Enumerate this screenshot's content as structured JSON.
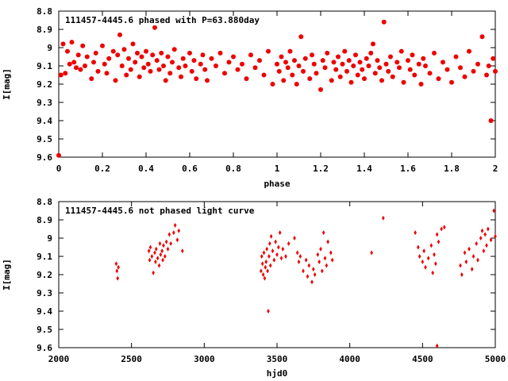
{
  "chart_data": [
    {
      "type": "scatter",
      "title": "111457-4445.6 phased with P=63.880day",
      "xlabel": "phase",
      "ylabel": "I[mag]",
      "xlim": [
        0,
        2
      ],
      "ylim": [
        9.6,
        8.8
      ],
      "y_inverted": true,
      "x_ticks": [
        "0",
        "0.2",
        "0.4",
        "0.6",
        "0.8",
        "1",
        "1.2",
        "1.4",
        "1.6",
        "1.8",
        "2"
      ],
      "y_ticks": [
        "8.8",
        "8.9",
        "9",
        "9.1",
        "9.2",
        "9.3",
        "9.4",
        "9.5",
        "9.6"
      ],
      "marker": "filled-circle",
      "color": "#ee0000",
      "series": [
        {
          "x": [
            0.0,
            0.01,
            0.02,
            0.03,
            0.04,
            0.05,
            0.06,
            0.07,
            0.08,
            0.09,
            0.1,
            0.11,
            0.12,
            0.13,
            0.15,
            0.16,
            0.17,
            0.18,
            0.2,
            0.21,
            0.22,
            0.23,
            0.25,
            0.26,
            0.27,
            0.28,
            0.29,
            0.3,
            0.31,
            0.32,
            0.33,
            0.34,
            0.35,
            0.36,
            0.37,
            0.38,
            0.39,
            0.4,
            0.41,
            0.42,
            0.43,
            0.44,
            0.45,
            0.46,
            0.47,
            0.48,
            0.49,
            0.5,
            0.51,
            0.52,
            0.53,
            0.55,
            0.56,
            0.57,
            0.58,
            0.6,
            0.61,
            0.62,
            0.63,
            0.65,
            0.66,
            0.67,
            0.68,
            0.7,
            0.72,
            0.74,
            0.76,
            0.78,
            0.8,
            0.82,
            0.84,
            0.86,
            0.88,
            0.9,
            0.92,
            0.94,
            0.96,
            0.98,
            1.0,
            1.01,
            1.02,
            1.03,
            1.04,
            1.05,
            1.06,
            1.07,
            1.08,
            1.09,
            1.1,
            1.11,
            1.12,
            1.13,
            1.15,
            1.16,
            1.17,
            1.18,
            1.2,
            1.21,
            1.22,
            1.23,
            1.25,
            1.26,
            1.27,
            1.28,
            1.29,
            1.3,
            1.31,
            1.32,
            1.33,
            1.34,
            1.35,
            1.36,
            1.37,
            1.38,
            1.39,
            1.4,
            1.41,
            1.42,
            1.43,
            1.44,
            1.45,
            1.46,
            1.47,
            1.48,
            1.49,
            1.5,
            1.51,
            1.52,
            1.53,
            1.55,
            1.56,
            1.57,
            1.58,
            1.6,
            1.61,
            1.62,
            1.63,
            1.65,
            1.66,
            1.67,
            1.68,
            1.7,
            1.72,
            1.74,
            1.76,
            1.78,
            1.8,
            1.82,
            1.84,
            1.86,
            1.88,
            1.9,
            1.92,
            1.94,
            1.96,
            1.97,
            1.98,
            1.99,
            2.0
          ],
          "y": [
            9.59,
            9.15,
            8.98,
            9.14,
            9.02,
            9.09,
            8.97,
            9.08,
            9.11,
            9.04,
            9.12,
            8.99,
            9.1,
            9.05,
            9.17,
            9.08,
            9.03,
            9.13,
            8.99,
            9.09,
            9.14,
            9.06,
            9.02,
            9.18,
            9.04,
            8.93,
            9.1,
            9.01,
            9.15,
            9.06,
            9.12,
            8.98,
            9.08,
            9.03,
            9.16,
            9.05,
            9.11,
            9.02,
            9.09,
            9.13,
            9.04,
            8.89,
            9.07,
            9.12,
            9.03,
            9.1,
            9.18,
            9.05,
            9.14,
            9.08,
            9.01,
            9.11,
            9.16,
            9.06,
            9.1,
            9.03,
            9.13,
            9.07,
            9.17,
            9.09,
            9.04,
            9.12,
            9.18,
            9.06,
            9.1,
            9.03,
            9.14,
            9.08,
            9.05,
            9.12,
            9.09,
            9.17,
            9.04,
            9.11,
            9.07,
            9.15,
            9.02,
            9.2,
            9.09,
            9.13,
            9.05,
            9.18,
            9.08,
            9.11,
            9.02,
            9.15,
            9.07,
            9.2,
            9.1,
            8.94,
            9.13,
            9.06,
            9.17,
            9.04,
            9.09,
            9.14,
            9.23,
            9.07,
            9.11,
            9.03,
            9.18,
            9.08,
            9.12,
            9.05,
            9.16,
            9.09,
            9.02,
            9.13,
            9.07,
            9.19,
            9.1,
            9.04,
            9.15,
            9.08,
            9.12,
            9.17,
            9.06,
            9.1,
            9.03,
            8.98,
            9.14,
            9.07,
            9.11,
            9.18,
            8.86,
            9.09,
            9.13,
            9.05,
            9.16,
            9.08,
            9.11,
            9.02,
            9.19,
            9.07,
            9.12,
            9.04,
            9.15,
            9.09,
            9.2,
            9.06,
            9.1,
            9.14,
            9.03,
            9.17,
            9.08,
            9.12,
            9.19,
            9.05,
            9.11,
            9.16,
            9.02,
            9.13,
            9.09,
            8.94,
            9.15,
            9.1,
            9.4,
            9.06,
            9.13
          ]
        }
      ]
    },
    {
      "type": "scatter",
      "title": "111457-4445.6 not phased light curve",
      "xlabel": "hjd0",
      "ylabel": "I[mag]",
      "xlim": [
        2000,
        5000
      ],
      "ylim": [
        9.6,
        8.8
      ],
      "y_inverted": true,
      "x_ticks": [
        "2000",
        "2500",
        "3000",
        "3500",
        "4000",
        "4500",
        "5000"
      ],
      "y_ticks": [
        "8.8",
        "8.9",
        "9",
        "9.1",
        "9.2",
        "9.3",
        "9.4",
        "9.5",
        "9.6"
      ],
      "marker": "small-diamond",
      "color": "#ee0000",
      "series": [
        {
          "x": [
            2395,
            2400,
            2405,
            2410,
            2620,
            2625,
            2630,
            2640,
            2650,
            2660,
            2665,
            2670,
            2680,
            2690,
            2695,
            2700,
            2710,
            2715,
            2720,
            2730,
            2740,
            2750,
            2760,
            2770,
            2790,
            2800,
            2815,
            2825,
            2850,
            3390,
            3395,
            3400,
            3405,
            3410,
            3415,
            3420,
            3425,
            3430,
            3435,
            3440,
            3445,
            3450,
            3455,
            3460,
            3470,
            3480,
            3490,
            3500,
            3510,
            3520,
            3530,
            3540,
            3560,
            3580,
            3620,
            3640,
            3650,
            3660,
            3680,
            3700,
            3710,
            3720,
            3740,
            3750,
            3760,
            3780,
            3790,
            3800,
            3810,
            3820,
            3830,
            3840,
            3850,
            3870,
            3880,
            4150,
            4230,
            4450,
            4470,
            4480,
            4500,
            4510,
            4520,
            4540,
            4560,
            4570,
            4580,
            4590,
            4600,
            4610,
            4630,
            4650,
            4760,
            4770,
            4790,
            4800,
            4820,
            4840,
            4850,
            4870,
            4880,
            4900,
            4910,
            4920,
            4930,
            4940,
            4950,
            4970,
            4990,
            5000
          ],
          "y": [
            9.14,
            9.18,
            9.22,
            9.16,
            9.07,
            9.12,
            9.05,
            9.1,
            9.19,
            9.08,
            9.13,
            9.06,
            9.11,
            9.15,
            9.03,
            9.09,
            9.07,
            9.12,
            9.04,
            9.1,
            9.02,
            9.06,
            8.98,
            9.03,
            8.97,
            8.93,
            9.01,
            8.96,
            9.07,
            9.18,
            9.1,
            9.14,
            9.2,
            9.08,
            9.22,
            9.16,
            9.13,
            9.06,
            9.18,
            9.4,
            9.1,
            9.03,
            9.15,
            8.99,
            9.07,
            9.12,
            9.02,
            9.09,
            9.05,
            8.97,
            9.11,
            9.06,
            9.1,
            9.03,
            9.0,
            9.08,
            9.13,
            9.1,
            9.18,
            9.12,
            9.21,
            9.15,
            9.24,
            9.17,
            9.2,
            9.09,
            9.13,
            9.06,
            9.18,
            8.97,
            9.11,
            9.15,
            9.02,
            9.08,
            9.12,
            9.08,
            8.89,
            8.97,
            9.05,
            9.1,
            9.13,
            9.07,
            9.16,
            9.11,
            9.04,
            9.19,
            9.09,
            9.14,
            8.98,
            9.02,
            8.95,
            8.94,
            9.15,
            9.2,
            9.08,
            9.13,
            9.06,
            9.17,
            9.1,
            9.03,
            9.12,
            9.0,
            8.96,
            9.07,
            8.98,
            9.04,
            8.95,
            9.01,
            8.85,
            8.99
          ],
          "outlier_x": [
            4600
          ],
          "outlier_y": [
            9.59
          ]
        }
      ]
    }
  ]
}
